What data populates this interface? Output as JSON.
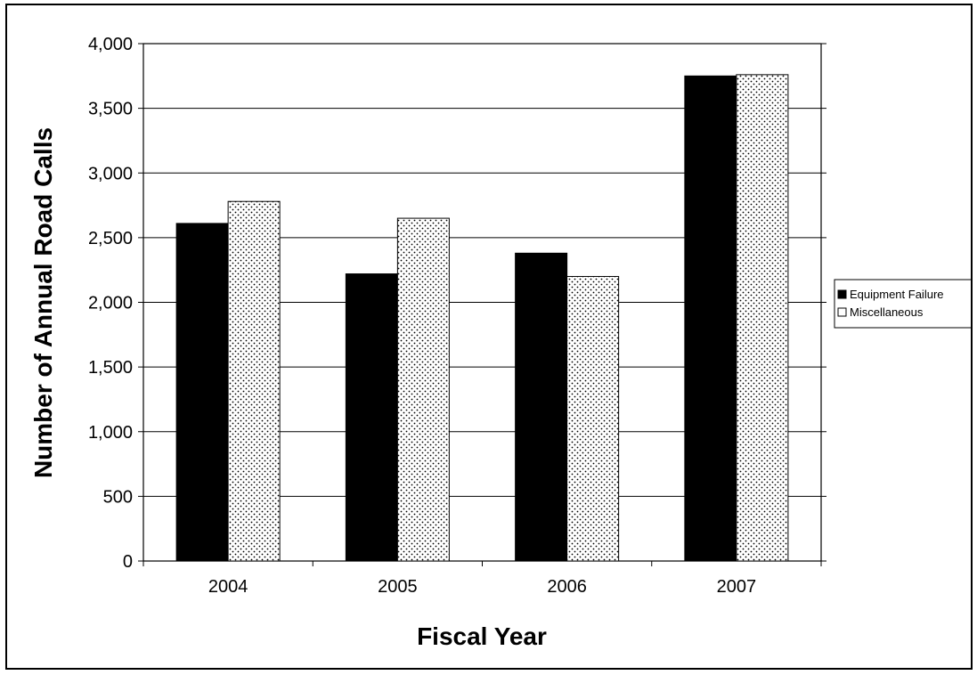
{
  "chart_data": {
    "type": "bar",
    "title": "",
    "xlabel": "Fiscal Year",
    "ylabel": "Number of Annual Road Calls",
    "categories": [
      "2004",
      "2005",
      "2006",
      "2007"
    ],
    "series": [
      {
        "name": "Equipment Failure",
        "values": [
          2610,
          2220,
          2380,
          3750
        ],
        "color": "#000000",
        "pattern": "solid"
      },
      {
        "name": "Miscellaneous",
        "values": [
          2780,
          2650,
          2200,
          3760
        ],
        "color": "#ffffff",
        "pattern": "dotted"
      }
    ],
    "ylim": [
      0,
      4000
    ],
    "y_ticks": [
      0,
      500,
      1000,
      1500,
      2000,
      2500,
      3000,
      3500,
      4000
    ],
    "y_tick_labels": [
      "0",
      "500",
      "1,000",
      "1,500",
      "2,000",
      "2,500",
      "3,000",
      "3,500",
      "4,000"
    ],
    "grid": true,
    "legend_position": "right"
  }
}
